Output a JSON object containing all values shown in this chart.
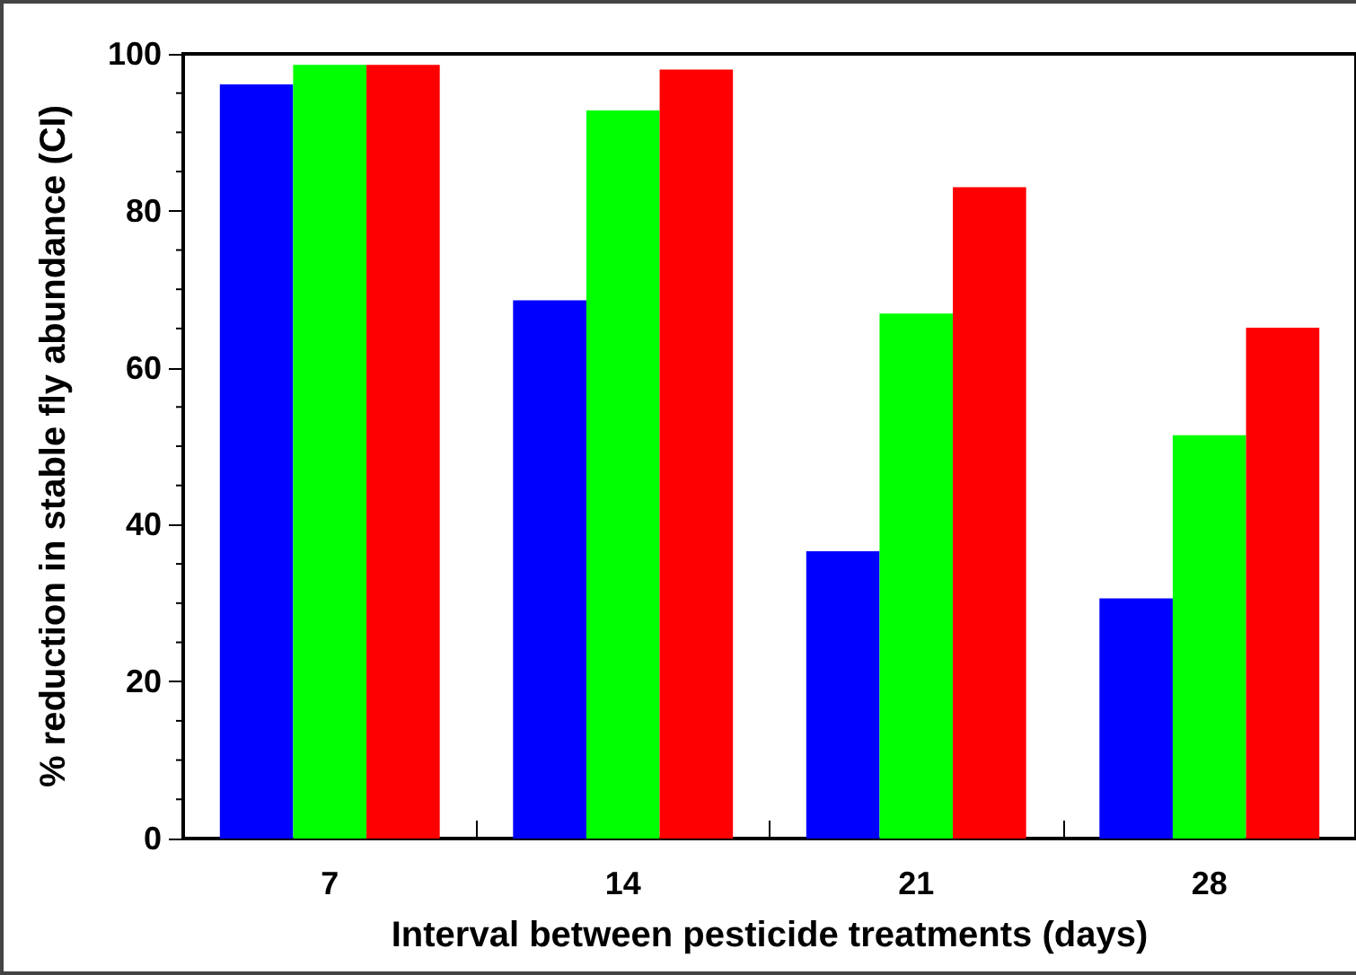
{
  "chart_data": {
    "type": "bar",
    "xlabel": "Interval between pesticide treatments (days)",
    "ylabel": "% reduction in stable fly abundance (CI)",
    "categories": [
      "7",
      "14",
      "21",
      "28"
    ],
    "series": [
      {
        "color": "#0000ff",
        "values": [
          96.1,
          68.6,
          36.6,
          30.6
        ]
      },
      {
        "color": "#00ff00",
        "values": [
          98.6,
          92.8,
          66.9,
          51.4
        ]
      },
      {
        "color": "#ff0000",
        "values": [
          98.6,
          98.0,
          83.0,
          65.1
        ]
      }
    ],
    "ylim": [
      0,
      100
    ],
    "yticks": [
      0,
      20,
      40,
      60,
      80,
      100
    ],
    "grid": false
  }
}
